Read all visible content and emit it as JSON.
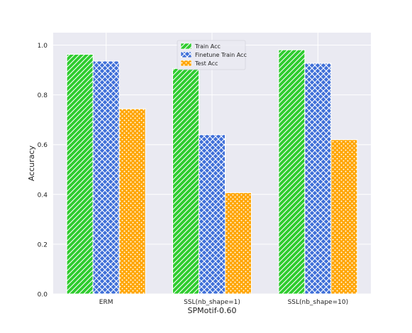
{
  "chart_data": {
    "type": "bar",
    "title": "",
    "xlabel": "SPMotif-0.60",
    "ylabel": "Accuracy",
    "ylim": [
      0,
      1.05
    ],
    "yticks": [
      0.0,
      0.2,
      0.4,
      0.6,
      0.8,
      1.0
    ],
    "ytick_labels": [
      "0.0",
      "0.2",
      "0.4",
      "0.6",
      "0.8",
      "1.0"
    ],
    "grid": true,
    "legend_position": "top-center",
    "categories": [
      "ERM",
      "SSL(nb_shape=1)",
      "SSL(nb_shape=10)"
    ],
    "series": [
      {
        "name": "Train Acc",
        "values": [
          0.963,
          0.906,
          0.981
        ],
        "color": "#2ecc2e",
        "hatch": "diagonal"
      },
      {
        "name": "Finetune Train Acc",
        "values": [
          0.936,
          0.64,
          0.927
        ],
        "color": "#3f6fd8",
        "hatch": "crosshatch"
      },
      {
        "name": "Test Acc",
        "values": [
          0.744,
          0.407,
          0.62
        ],
        "color": "#ffa500",
        "hatch": "dots"
      }
    ]
  }
}
